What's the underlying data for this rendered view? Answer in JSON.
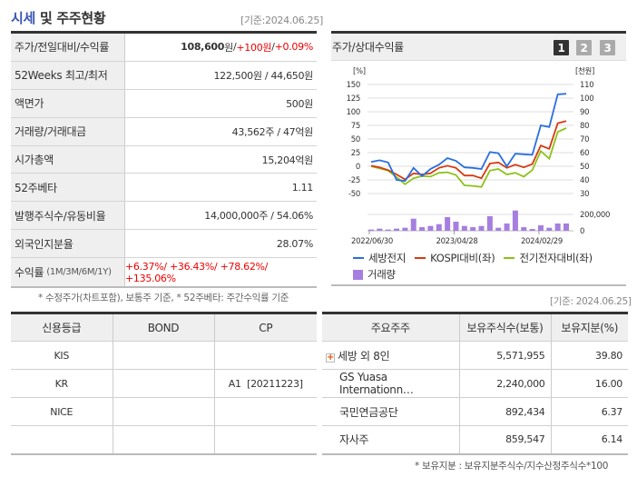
{
  "header": {
    "title_part1": "시세",
    "title_part2": " 및 주주현황",
    "basis": "[기준:2024.06.25]"
  },
  "summary": [
    {
      "label": "주가/전일대비/수익률",
      "price": "108,600",
      "unit": "원",
      "sep": " / ",
      "change": "+100원",
      "sep2": " / ",
      "rate": "+0.09%"
    },
    {
      "label": "52Weeks 최고/최저",
      "value": "122,500원 / 44,650원"
    },
    {
      "label": "액면가",
      "value": "500원"
    },
    {
      "label": "거래량/거래대금",
      "value": "43,562주 / 47억원"
    },
    {
      "label": "시가총액",
      "value": "15,204억원"
    },
    {
      "label": "52주베타",
      "value": "1.11"
    },
    {
      "label": "발행주식수/유동비율",
      "value": "14,000,000주 / 54.06%"
    },
    {
      "label": "외국인지분율",
      "value": "28.07%"
    },
    {
      "label": "수익률",
      "label_sub": "(1M/3M/6M/1Y)",
      "value": "+6.37%/ +36.43%/ +78.62%/ +135.06%"
    }
  ],
  "summary_note": "* 수정주가(차트포함), 보통주 기준, * 52주베타: 주간수익률 기준",
  "chart_panel": {
    "title": "주가/상대수익률",
    "pages": [
      "1",
      "2",
      "3"
    ],
    "active_page": "1"
  },
  "chart_data": {
    "type": "line",
    "left_unit": "[%]",
    "right_unit": "[천원]",
    "left_ticks": [
      150,
      125,
      100,
      75,
      50,
      25,
      0,
      -25,
      -50
    ],
    "right_ticks": [
      110,
      100,
      90,
      80,
      70,
      60,
      50,
      40,
      30
    ],
    "ylim": [
      -50,
      150
    ],
    "volume_ticks": [
      "200,000",
      "0"
    ],
    "volume_ylim": [
      0,
      200000
    ],
    "x_labels": [
      "2022/06/30",
      "2023/04/28",
      "2024/02/29"
    ],
    "series": [
      {
        "name": "세방전지",
        "color": "#2a6ee0",
        "values": [
          8,
          11,
          7,
          -25,
          -27,
          -3,
          -18,
          -5,
          3,
          15,
          10,
          -2,
          -3,
          -5,
          26,
          24,
          0,
          23,
          22,
          21,
          75,
          72,
          132,
          133
        ]
      },
      {
        "name": "KOSPI대비(좌)",
        "color": "#d63a10",
        "values": [
          1,
          -2,
          -7,
          -15,
          -24,
          -13,
          -15,
          -13,
          -3,
          1,
          -3,
          -17,
          -17,
          -22,
          5,
          7,
          -3,
          3,
          -2,
          4,
          38,
          32,
          79,
          83
        ]
      },
      {
        "name": "전기전자대비(좌)",
        "color": "#8cc21a",
        "values": [
          0,
          -4,
          -8,
          -20,
          -33,
          -22,
          -18,
          -19,
          -12,
          -11,
          -16,
          -35,
          -36,
          -38,
          -8,
          -5,
          -15,
          -12,
          -19,
          -7,
          28,
          14,
          63,
          70
        ]
      }
    ],
    "volume": {
      "name": "거래량",
      "color": "#a67ee0",
      "values": [
        15000,
        26000,
        15000,
        26000,
        37000,
        148000,
        44000,
        59000,
        81000,
        167000,
        111000,
        59000,
        44000,
        59000,
        178000,
        37000,
        89000,
        248000,
        44000,
        22000,
        67000,
        37000,
        89000,
        89000
      ]
    }
  },
  "credit": {
    "headers": [
      "신용등급",
      "BOND",
      "CP"
    ],
    "rows": [
      [
        "KIS",
        "",
        ""
      ],
      [
        "KR",
        "",
        "A1  [20211223]"
      ],
      [
        "NICE",
        "",
        ""
      ],
      [
        "",
        "",
        ""
      ]
    ]
  },
  "shareholders": {
    "basis": "[기준: 2024.06.25]",
    "headers": [
      "주요주주",
      "보유주식수(보통)",
      "보유지분(%)"
    ],
    "rows": [
      [
        "세방 외 8인",
        "5,571,955",
        "39.80"
      ],
      [
        "GS Yuasa Internationn…",
        "2,240,000",
        "16.00"
      ],
      [
        "국민연금공단",
        "892,434",
        "6.37"
      ],
      [
        "자사주",
        "859,547",
        "6.14"
      ]
    ],
    "note": "* 보유지분 : 보유지분주식수/지수산정주식수*100"
  }
}
